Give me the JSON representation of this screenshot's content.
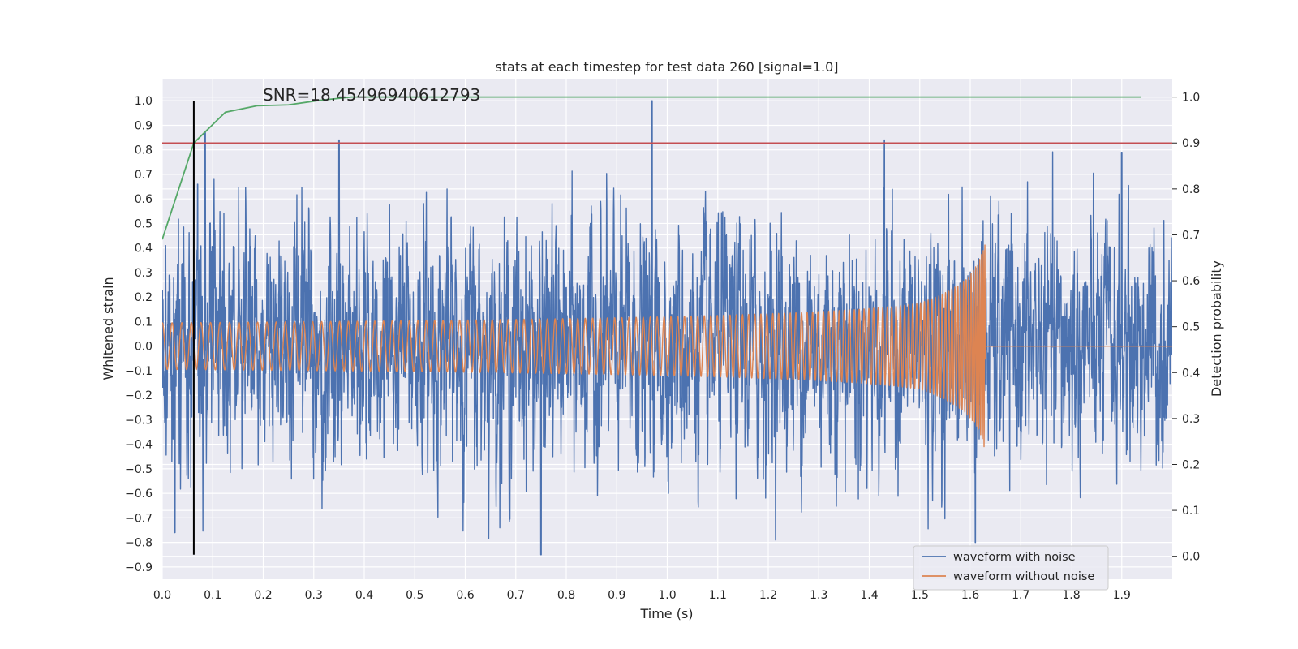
{
  "chart_data": {
    "type": "line",
    "title": "stats at each timestep for test data 260 [signal=1.0]",
    "xlabel": "Time (s)",
    "ylabel": "Whitened strain",
    "y2label": "Detection probability",
    "xlim": [
      0.0,
      2.0
    ],
    "ylim": [
      -0.95,
      1.09
    ],
    "y2lim": [
      -0.05,
      1.04
    ],
    "x_ticks": [
      "0.0",
      "0.1",
      "0.2",
      "0.3",
      "0.4",
      "0.5",
      "0.6",
      "0.7",
      "0.8",
      "0.9",
      "1.0",
      "1.1",
      "1.2",
      "1.3",
      "1.4",
      "1.5",
      "1.6",
      "1.7",
      "1.8",
      "1.9"
    ],
    "y_ticks": [
      "1.0",
      "0.9",
      "0.8",
      "0.7",
      "0.6",
      "0.5",
      "0.4",
      "0.3",
      "0.2",
      "0.1",
      "0.0",
      "−0.1",
      "−0.2",
      "−0.3",
      "−0.4",
      "−0.5",
      "−0.6",
      "−0.7",
      "−0.8",
      "−0.9"
    ],
    "y2_ticks": [
      "1.0",
      "0.9",
      "0.8",
      "0.7",
      "0.6",
      "0.5",
      "0.4",
      "0.3",
      "0.2",
      "0.1",
      "0.0"
    ],
    "grid": true,
    "legend_position": "lower-right",
    "annotation": "SNR=18.45496940612793",
    "series": [
      {
        "name": "waveform with noise",
        "axis": "left",
        "color": "#4c72b0",
        "style": "dense noise, roughly ±0.35 with spikes; max 1.0 at t≈0.97, min −0.85 at t≈0.75"
      },
      {
        "name": "waveform without noise",
        "axis": "left",
        "color": "#dd8452",
        "style": "chirp, amplitude ~0.1 growing to ~0.4 near t≈1.62, then flat 0.0 after t≈1.63"
      },
      {
        "axis": "right",
        "color": "#55a868",
        "x": [
          0.0,
          0.0625,
          0.125,
          0.1875,
          0.25,
          0.3125,
          0.375,
          0.4375,
          0.5,
          1.9375
        ],
        "values": [
          0.69,
          0.9,
          0.967,
          0.981,
          0.983,
          0.993,
          1.0,
          1.0,
          1.0,
          1.0
        ]
      },
      {
        "axis": "right",
        "color": "#c44e52",
        "type": "hline",
        "values": [
          0.9
        ]
      },
      {
        "color": "#000000",
        "type": "vline",
        "x": [
          0.0625
        ],
        "y_range": [
          -0.85,
          1.0
        ]
      }
    ]
  }
}
